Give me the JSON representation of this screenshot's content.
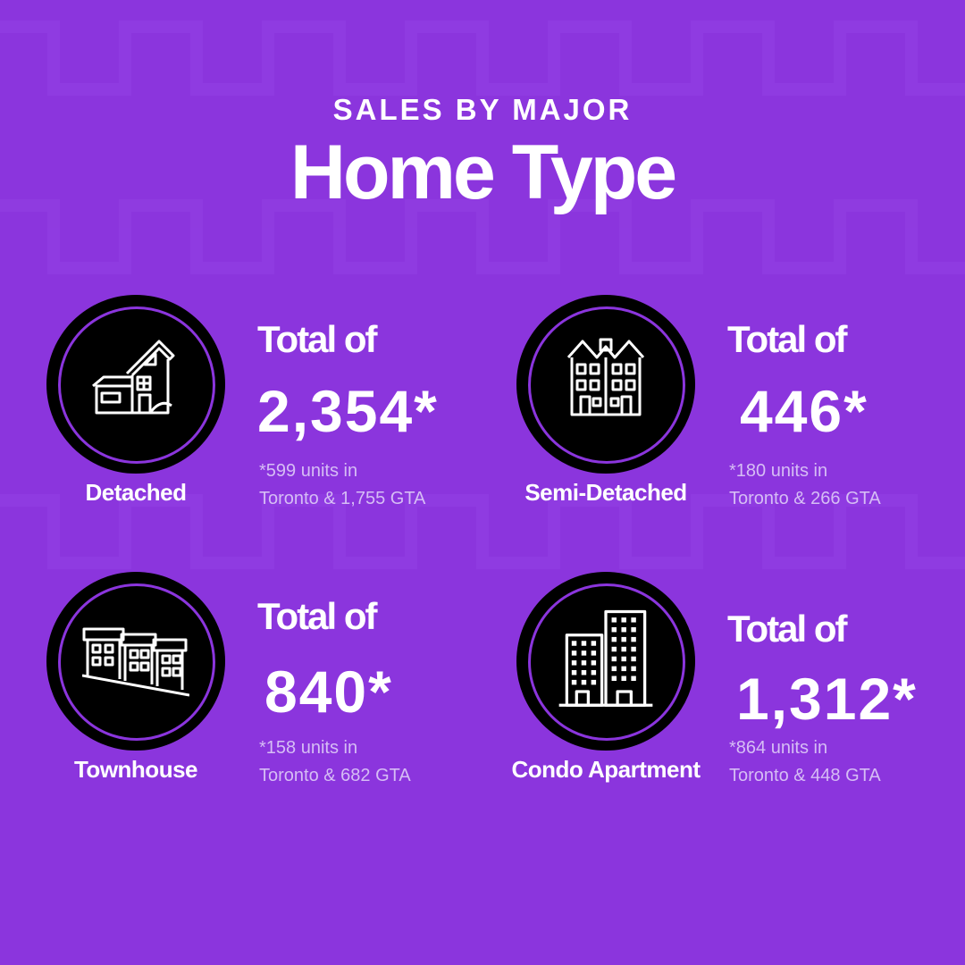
{
  "header": {
    "kicker": "SALES BY MAJOR",
    "title": "Home Type"
  },
  "cards": [
    {
      "type": "Detached",
      "icon": "detached-house-icon",
      "total_label": "Total of",
      "total_value": "2,354*",
      "breakdown_line1": "*599 units in",
      "breakdown_line2": "Toronto &  1,755 GTA"
    },
    {
      "type": "Semi-Detached",
      "icon": "semi-detached-house-icon",
      "total_label": "Total of",
      "total_value": "446*",
      "breakdown_line1": "*180 units in",
      "breakdown_line2": "Toronto &  266 GTA"
    },
    {
      "type": "Townhouse",
      "icon": "townhouse-icon",
      "total_label": "Total of",
      "total_value": "840*",
      "breakdown_line1": "*158 units in",
      "breakdown_line2": "Toronto & 682 GTA"
    },
    {
      "type": "Condo Apartment",
      "icon": "condo-building-icon",
      "total_label": "Total of",
      "total_value": "1,312*",
      "breakdown_line1": "*864 units in",
      "breakdown_line2": "Toronto &  448 GTA"
    }
  ],
  "colors": {
    "background": "#8B35DD",
    "badge": "#000000",
    "ring": "#8B35DD",
    "text": "#FFFFFF",
    "subtext": "#D6BDF5"
  }
}
